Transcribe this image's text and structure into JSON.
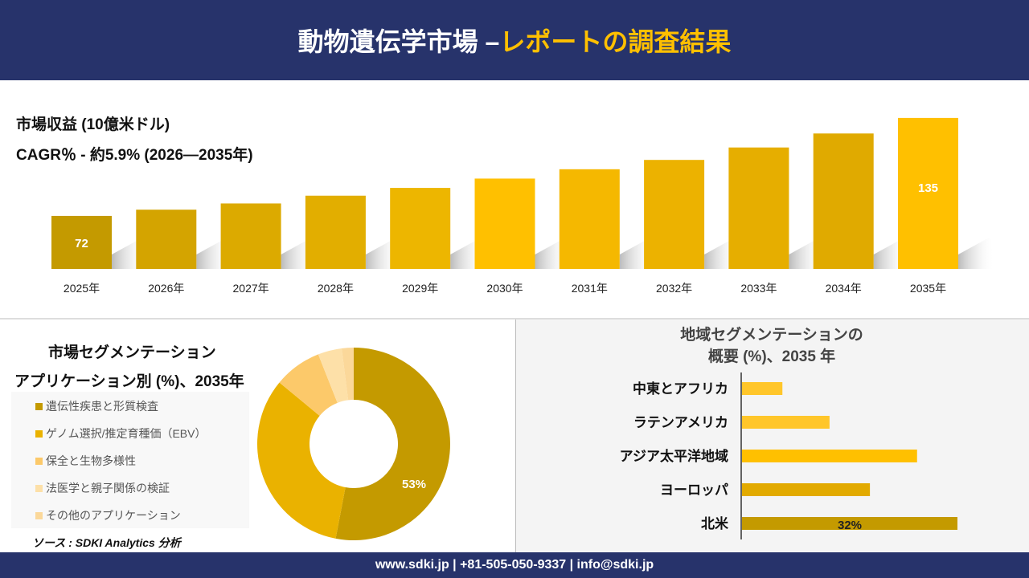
{
  "header": {
    "title_main": "動物遺伝学市場 –",
    "title_accent": "レポートの調査結果"
  },
  "revenue": {
    "title": "市場収益 (10億米ドル)",
    "cagr": "CAGR％ - 約5.9% (2026—2035年)"
  },
  "chart_data": [
    {
      "type": "bar",
      "categories": [
        "2025年",
        "2026年",
        "2027年",
        "2028年",
        "2029年",
        "2030年",
        "2031年",
        "2032年",
        "2033年",
        "2034年",
        "2035年"
      ],
      "values": [
        72,
        76,
        80,
        85,
        90,
        96,
        102,
        108,
        116,
        125,
        135
      ],
      "data_labels": {
        "2025年": "72",
        "2035年": "135"
      },
      "colors": [
        "#c49a00",
        "#d4a400",
        "#dcaa00",
        "#e2ae00",
        "#edb600",
        "#ffc000",
        "#f5b800",
        "#ecb200",
        "#e6ae00",
        "#e0aa00",
        "#ffc000"
      ]
    },
    {
      "type": "pie",
      "title": "市場セグメンテーション",
      "subtitle": "アプリケーション別 (%)、2035年",
      "labels": [
        "遺伝性疾患と形質検査",
        "ゲノム選択/推定育種価（EBV）",
        "保全と生物多様性",
        "法医学と親子関係の検証",
        "その他のアプリケーション"
      ],
      "values": [
        53,
        33,
        8,
        4,
        2
      ],
      "data_labels": [
        "53%"
      ],
      "colors": [
        "#c49a00",
        "#eab200",
        "#fcc96a",
        "#fde0a8",
        "#fbd89a"
      ],
      "donut": true,
      "legend": "left"
    },
    {
      "type": "bar",
      "orientation": "horizontal",
      "title": "地域セグメンテーションの",
      "subtitle": "概要 (%)、2035 年",
      "categories": [
        "中東とアフリカ",
        "ラテンアメリカ",
        "アジア太平洋地域",
        "ヨーロッパ",
        "北米"
      ],
      "values": [
        6,
        13,
        26,
        19,
        32
      ],
      "data_labels": {
        "北米": "32%"
      },
      "colors": [
        "#ffc62a",
        "#ffc62a",
        "#ffc000",
        "#e2aa00",
        "#c49a00"
      ]
    }
  ],
  "source": "ソース : SDKI Analytics 分析",
  "footer": "www.sdki.jp | +81-505-050-9337 | info@sdki.jp"
}
